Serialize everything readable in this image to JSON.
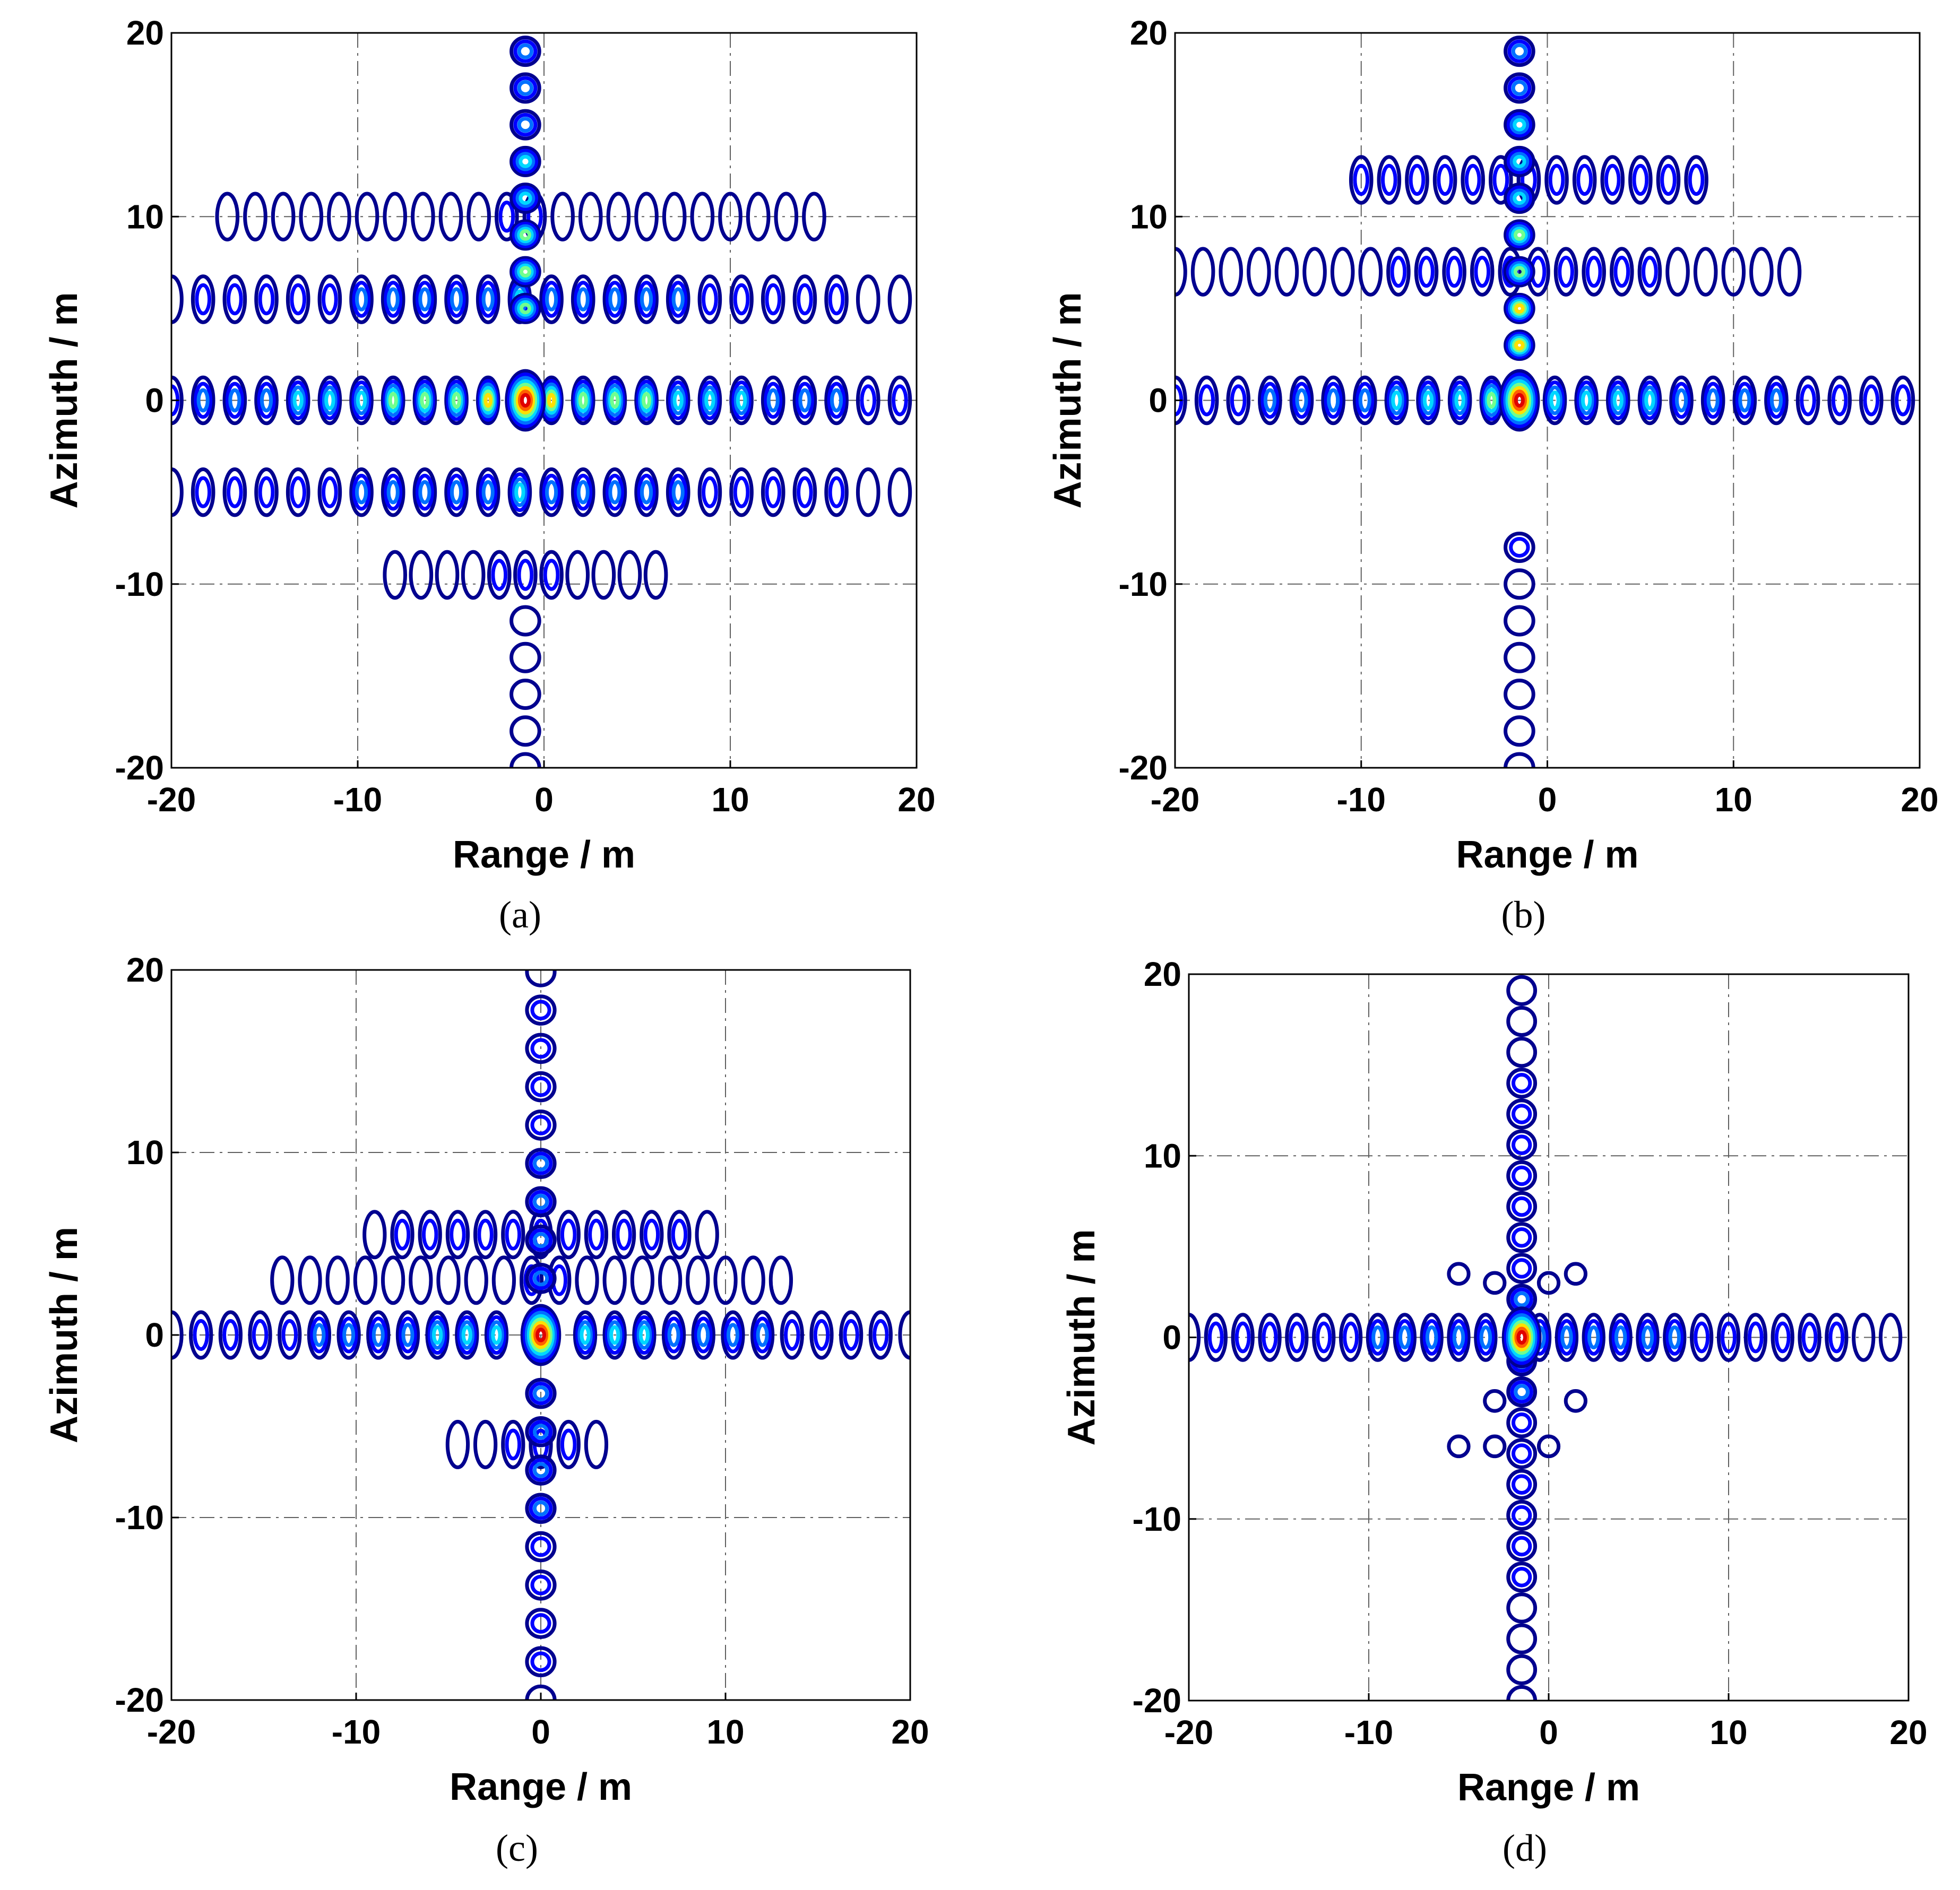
{
  "figure": {
    "panels": [
      {
        "id": "a",
        "caption": "(a)"
      },
      {
        "id": "b",
        "caption": "(b)"
      },
      {
        "id": "c",
        "caption": "(c)"
      },
      {
        "id": "d",
        "caption": "(d)"
      }
    ]
  },
  "chart_data": [
    {
      "panel": "a",
      "type": "contour",
      "title": "",
      "xlabel": "Range / m",
      "ylabel": "Azimuth / m",
      "xlim": [
        -20,
        20
      ],
      "ylim": [
        -20,
        20
      ],
      "xticks": [
        -20,
        -10,
        0,
        10,
        20
      ],
      "yticks": [
        -20,
        -10,
        0,
        10,
        20
      ],
      "grid": true,
      "peak": [
        -1,
        0
      ],
      "features": {
        "range_lobes_at_azimuth": [
          {
            "azimuth": 0,
            "from": -20,
            "to": 20,
            "spacing": 1.7,
            "intensity": 0.75
          },
          {
            "azimuth": 5.5,
            "from": -20,
            "to": 20,
            "spacing": 1.7,
            "intensity": 0.45
          },
          {
            "azimuth": -5,
            "from": -20,
            "to": 20,
            "spacing": 1.7,
            "intensity": 0.45
          },
          {
            "azimuth": 10,
            "from": -17,
            "to": 15,
            "spacing": 1.5,
            "intensity": 0.2
          },
          {
            "azimuth": -9.5,
            "from": -8,
            "to": 6,
            "spacing": 1.4,
            "intensity": 0.2
          }
        ],
        "azimuth_lobes_at_range": [
          {
            "range": -1,
            "from": 5,
            "to": 20,
            "spacing": 2.0,
            "intensity": 0.8
          },
          {
            "range": -1,
            "from": -20,
            "to": -11,
            "spacing": 2.0,
            "intensity": 0.25
          }
        ]
      }
    },
    {
      "panel": "b",
      "type": "contour",
      "title": "",
      "xlabel": "Range / m",
      "ylabel": "Azimuth / m",
      "xlim": [
        -20,
        20
      ],
      "ylim": [
        -20,
        20
      ],
      "xticks": [
        -20,
        -10,
        0,
        10,
        20
      ],
      "yticks": [
        -20,
        -10,
        0,
        10,
        20
      ],
      "grid": true,
      "peak": [
        -1.5,
        0
      ],
      "features": {
        "range_lobes_at_azimuth": [
          {
            "azimuth": 0,
            "from": -20,
            "to": 20,
            "spacing": 1.7,
            "intensity": 0.6
          },
          {
            "azimuth": 7,
            "from": -20,
            "to": 14,
            "spacing": 1.5,
            "intensity": 0.25
          },
          {
            "azimuth": 12,
            "from": -10,
            "to": 8,
            "spacing": 1.5,
            "intensity": 0.3
          }
        ],
        "azimuth_lobes_at_range": [
          {
            "range": -1.5,
            "from": 3,
            "to": 20,
            "spacing": 2.0,
            "intensity": 0.85
          },
          {
            "range": -1.5,
            "from": -20,
            "to": -8,
            "spacing": 2.0,
            "intensity": 0.25
          }
        ]
      }
    },
    {
      "panel": "c",
      "type": "contour",
      "title": "",
      "xlabel": "Range / m",
      "ylabel": "Azimuth / m",
      "xlim": [
        -20,
        20
      ],
      "ylim": [
        -20,
        20
      ],
      "xticks": [
        -20,
        -10,
        0,
        10,
        20
      ],
      "yticks": [
        -20,
        -10,
        0,
        10,
        20
      ],
      "grid": true,
      "peak": [
        0,
        0
      ],
      "features": {
        "range_lobes_at_azimuth": [
          {
            "azimuth": 0,
            "from": -20,
            "to": 20,
            "spacing": 1.6,
            "intensity": 0.55
          },
          {
            "azimuth": 3,
            "from": -14,
            "to": 13,
            "spacing": 1.5,
            "intensity": 0.2
          },
          {
            "azimuth": 5.5,
            "from": -9,
            "to": 9,
            "spacing": 1.5,
            "intensity": 0.25
          },
          {
            "azimuth": -6,
            "from": -4.5,
            "to": 4,
            "spacing": 1.5,
            "intensity": 0.2
          }
        ],
        "azimuth_lobes_at_range": [
          {
            "range": 0,
            "from": -20,
            "to": 20,
            "spacing": 2.1,
            "intensity": 0.45
          }
        ]
      }
    },
    {
      "panel": "d",
      "type": "contour",
      "title": "",
      "xlabel": "Range / m",
      "ylabel": "Azimuth / m",
      "xlim": [
        -20,
        20
      ],
      "ylim": [
        -20,
        20
      ],
      "xticks": [
        -20,
        -10,
        0,
        10,
        20
      ],
      "yticks": [
        -20,
        -10,
        0,
        10,
        20
      ],
      "grid": true,
      "peak": [
        -1.5,
        0
      ],
      "features": {
        "range_lobes_at_azimuth": [
          {
            "azimuth": 0,
            "from": -20,
            "to": 20,
            "spacing": 1.5,
            "intensity": 0.45
          }
        ],
        "azimuth_lobes_at_range": [
          {
            "range": -1.5,
            "from": -20,
            "to": 20,
            "spacing": 1.7,
            "intensity": 0.35
          }
        ],
        "diagonal_lobes": [
          [
            -3,
            3
          ],
          [
            -5,
            3.5
          ],
          [
            0,
            3
          ],
          [
            1.5,
            3.5
          ],
          [
            -3,
            -3.5
          ],
          [
            1.5,
            -3.5
          ],
          [
            -5,
            -6
          ],
          [
            -3,
            -6
          ],
          [
            0,
            -6
          ]
        ]
      }
    }
  ]
}
